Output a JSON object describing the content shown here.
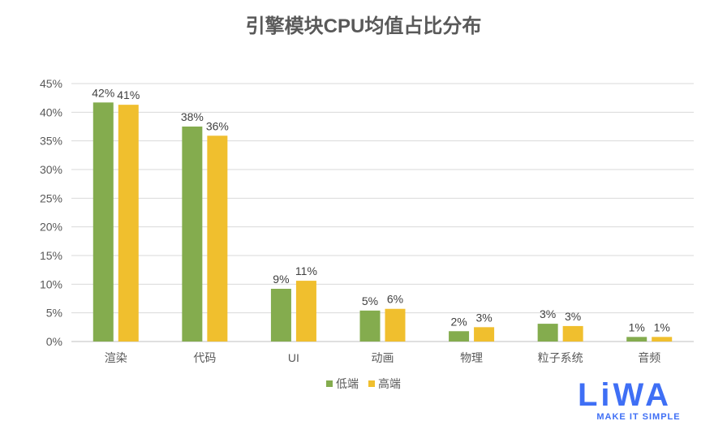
{
  "chart_data": {
    "type": "bar",
    "title": "引擎模块CPU均值占比分布",
    "categories": [
      "渲染",
      "代码",
      "UI",
      "动画",
      "物理",
      "粒子系统",
      "音频"
    ],
    "series": [
      {
        "name": "低端",
        "color": "#84ac4e",
        "values": [
          41.7,
          37.5,
          9.2,
          5.4,
          1.8,
          3.1,
          0.8
        ],
        "labels": [
          "42%",
          "38%",
          "9%",
          "5%",
          "2%",
          "3%",
          "1%"
        ]
      },
      {
        "name": "高端",
        "color": "#f0bf2e",
        "values": [
          41.3,
          35.9,
          10.6,
          5.7,
          2.5,
          2.7,
          0.8
        ],
        "labels": [
          "41%",
          "36%",
          "11%",
          "6%",
          "3%",
          "3%",
          "1%"
        ]
      }
    ],
    "ylim": [
      0,
      45
    ],
    "yticks": [
      0,
      5,
      10,
      15,
      20,
      25,
      30,
      35,
      40,
      45
    ],
    "ytick_labels": [
      "0%",
      "5%",
      "10%",
      "15%",
      "20%",
      "25%",
      "30%",
      "35%",
      "40%",
      "45%"
    ],
    "grid": true,
    "legend": "bottom",
    "xlabel": "",
    "ylabel": ""
  },
  "logo": {
    "word": "LiWA",
    "tagline": "MAKE IT SIMPLE"
  }
}
